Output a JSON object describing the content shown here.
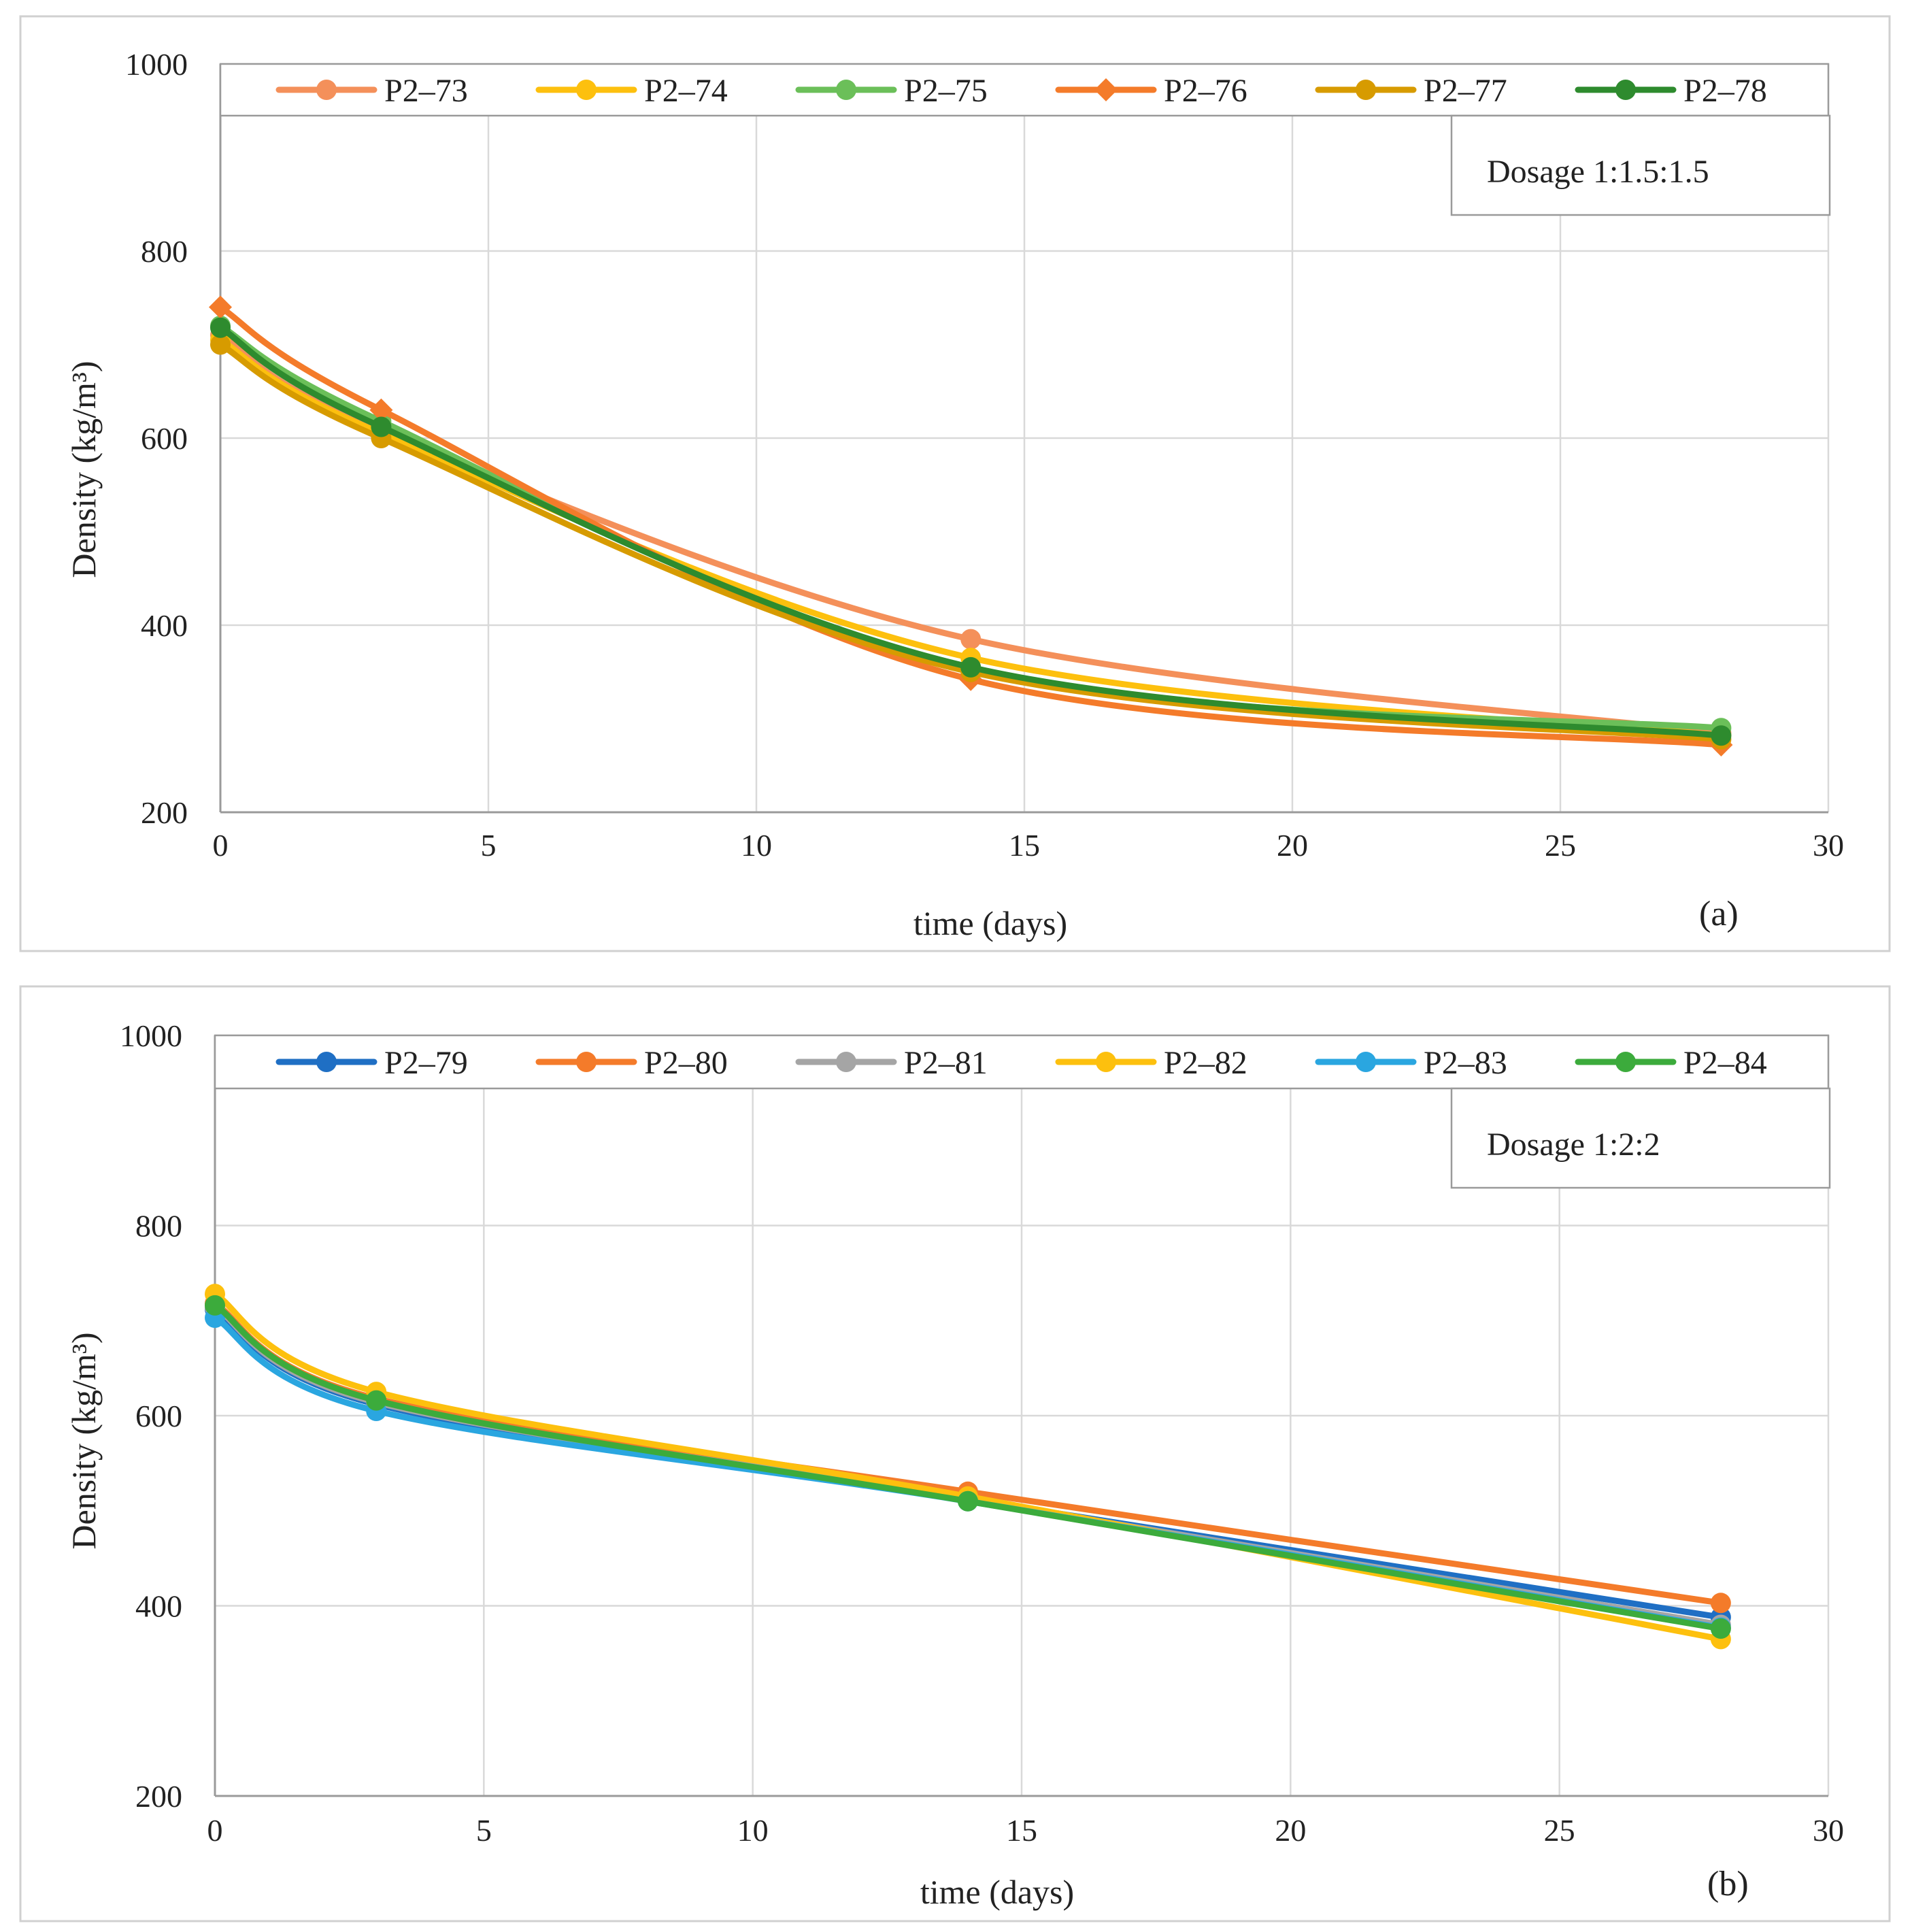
{
  "chart_data": [
    {
      "type": "line",
      "panel_label": "(a)",
      "annotation": "Dosage 1:1.5:1.5",
      "xlabel": "time (days)",
      "ylabel": "Density (kg/m³)",
      "xlim": [
        0,
        30
      ],
      "ylim": [
        200,
        1000
      ],
      "xticks": [
        0,
        5,
        10,
        15,
        20,
        25,
        30
      ],
      "yticks": [
        200,
        400,
        600,
        800,
        1000
      ],
      "grid": true,
      "legend_position": "top",
      "x": [
        0,
        3,
        14,
        28
      ],
      "series": [
        {
          "name": "P2–73",
          "color": "#f4905a",
          "marker": "circle",
          "values": [
            710,
            608,
            385,
            285
          ]
        },
        {
          "name": "P2–74",
          "color": "#fdc00e",
          "marker": "circle",
          "values": [
            705,
            605,
            365,
            282
          ]
        },
        {
          "name": "P2–75",
          "color": "#6bbf59",
          "marker": "circle",
          "values": [
            720,
            618,
            352,
            290
          ]
        },
        {
          "name": "P2–76",
          "color": "#f47b2a",
          "marker": "diamond",
          "values": [
            740,
            630,
            342,
            272
          ]
        },
        {
          "name": "P2–77",
          "color": "#d79b00",
          "marker": "circle",
          "values": [
            700,
            600,
            350,
            278
          ]
        },
        {
          "name": "P2–78",
          "color": "#2e8b2e",
          "marker": "circle",
          "values": [
            718,
            612,
            355,
            282
          ]
        }
      ]
    },
    {
      "type": "line",
      "panel_label": "(b)",
      "annotation": "Dosage 1:2:2",
      "xlabel": "time (days)",
      "ylabel": "Density (kg/m³)",
      "xlim": [
        0,
        30
      ],
      "ylim": [
        200,
        1000
      ],
      "xticks": [
        0,
        5,
        10,
        15,
        20,
        25,
        30
      ],
      "yticks": [
        200,
        400,
        600,
        800,
        1000
      ],
      "grid": true,
      "legend_position": "top",
      "x": [
        0,
        3,
        14,
        28
      ],
      "series": [
        {
          "name": "P2–79",
          "color": "#1f6fc4",
          "marker": "circle",
          "values": [
            712,
            612,
            512,
            388
          ]
        },
        {
          "name": "P2–80",
          "color": "#f47b2a",
          "marker": "circle",
          "values": [
            718,
            618,
            520,
            403
          ]
        },
        {
          "name": "P2–81",
          "color": "#a5a5a5",
          "marker": "circle",
          "values": [
            714,
            614,
            512,
            380
          ]
        },
        {
          "name": "P2–82",
          "color": "#fdc00e",
          "marker": "circle",
          "values": [
            728,
            625,
            515,
            365
          ]
        },
        {
          "name": "P2–83",
          "color": "#2aa6e0",
          "marker": "circle",
          "values": [
            703,
            605,
            510,
            377
          ]
        },
        {
          "name": "P2–84",
          "color": "#3cab3c",
          "marker": "circle",
          "values": [
            716,
            616,
            510,
            376
          ]
        }
      ]
    }
  ]
}
